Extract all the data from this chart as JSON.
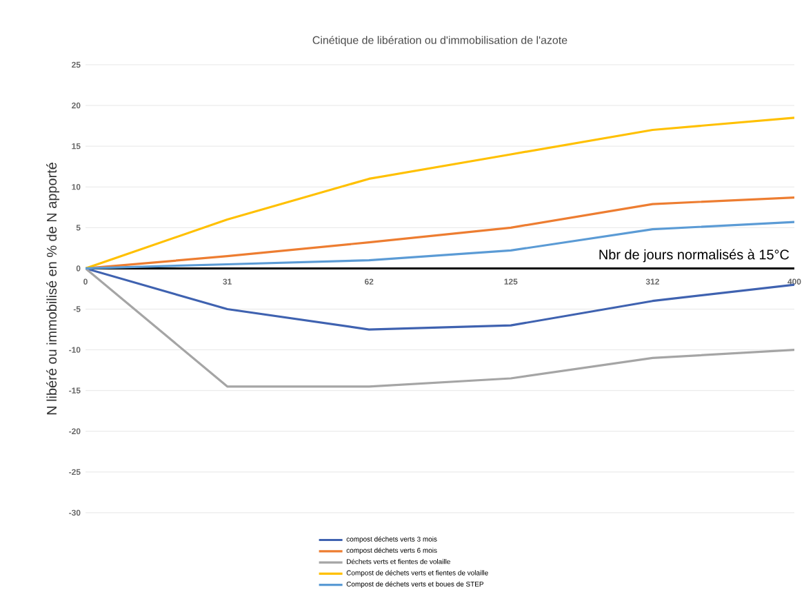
{
  "chart_data": {
    "type": "line",
    "title": "Cinétique de libération ou d'immobilisation de l'azote",
    "xlabel": "Nbr de jours normalisés à 15°C",
    "ylabel": "N libéré ou immobilisé en % de N apporté",
    "categories": [
      "0",
      "31",
      "62",
      "125",
      "312",
      "400"
    ],
    "series": [
      {
        "name": "compost déchets verts 3 mois",
        "color": "#3f62b0",
        "values": [
          0,
          -5,
          -7.5,
          -7,
          -4,
          -2
        ]
      },
      {
        "name": "compost déchets verts 6 mois",
        "color": "#ed7d31",
        "values": [
          0,
          1.5,
          3.2,
          5,
          7.9,
          8.7
        ]
      },
      {
        "name": "Déchets verts et fientes de volaille",
        "color": "#a5a5a5",
        "values": [
          0,
          -14.5,
          -14.5,
          -13.5,
          -11,
          -10
        ]
      },
      {
        "name": "Compost de déchets verts et fientes de volaille",
        "color": "#ffc000",
        "values": [
          0,
          6,
          11,
          14,
          17,
          18.5
        ]
      },
      {
        "name": "Compost de déchets verts et boues de STEP",
        "color": "#5b9bd5",
        "values": [
          0,
          0.5,
          1,
          2.2,
          4.8,
          5.7
        ]
      }
    ],
    "ylim": [
      -30,
      25
    ],
    "yticks": [
      -30,
      -25,
      -20,
      -15,
      -10,
      -5,
      0,
      5,
      10,
      15,
      20,
      25
    ],
    "grid": "y",
    "legend": "bottom",
    "marker": "none",
    "line_style": "solid"
  }
}
